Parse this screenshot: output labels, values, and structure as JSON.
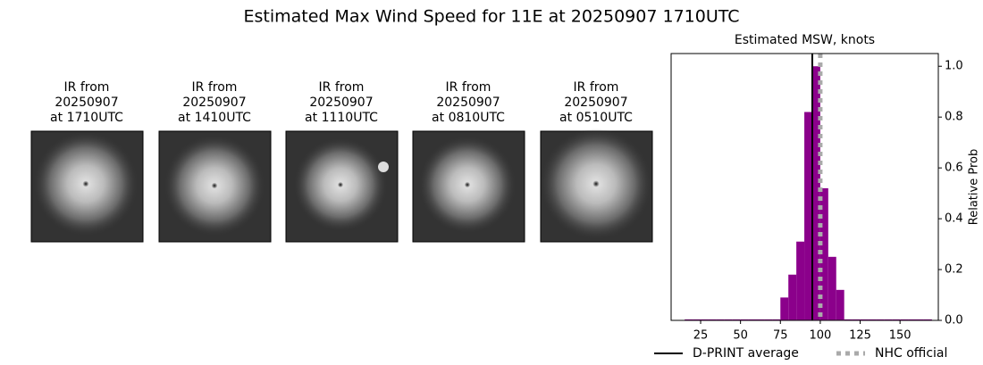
{
  "title": "Estimated Max Wind Speed for 11E at 20250907 1710UTC",
  "panels": [
    {
      "lines": [
        "IR from",
        "20250907",
        "at 1710UTC"
      ]
    },
    {
      "lines": [
        "IR from",
        "20250907",
        "at 1410UTC"
      ]
    },
    {
      "lines": [
        "IR from",
        "20250907",
        "at 1110UTC"
      ]
    },
    {
      "lines": [
        "IR from",
        "20250907",
        "at 0810UTC"
      ]
    },
    {
      "lines": [
        "IR from",
        "20250907",
        "at 0510UTC"
      ]
    }
  ],
  "chart_data": {
    "type": "histogram",
    "title": "Estimated MSW, knots",
    "y_label": "Relative Prob",
    "bins": [
      15,
      20,
      25,
      30,
      35,
      40,
      45,
      50,
      55,
      60,
      65,
      70,
      75,
      80,
      85,
      90,
      95,
      100,
      105,
      110,
      115,
      120,
      125,
      130,
      135,
      140,
      145,
      150,
      155,
      160,
      165,
      170
    ],
    "values": [
      0.004,
      0.004,
      0.004,
      0.004,
      0.004,
      0.004,
      0.004,
      0.004,
      0.004,
      0.004,
      0.004,
      0.004,
      0.09,
      0.18,
      0.31,
      0.82,
      1.0,
      0.52,
      0.25,
      0.12,
      0.004,
      0.004,
      0.004,
      0.004,
      0.004,
      0.004,
      0.004,
      0.004,
      0.004,
      0.004,
      0.004
    ],
    "color": "#8b008b",
    "xlim": [
      6.5,
      174
    ],
    "xticks": [
      25,
      50,
      75,
      100,
      125,
      150
    ],
    "y2lim": [
      0,
      1.05
    ],
    "y2ticks": [
      {
        "value": 0,
        "label": "0.0"
      },
      0.2,
      0.4,
      0.6,
      0.8,
      {
        "value": 1,
        "label": "1.0"
      }
    ],
    "lines": [
      {
        "name": "D-PRINT average",
        "value": 95,
        "color": "#000000",
        "style": "solid"
      },
      {
        "name": "NHC official",
        "value": 100,
        "color": "#aaaaaa",
        "style": "dotted"
      }
    ]
  }
}
